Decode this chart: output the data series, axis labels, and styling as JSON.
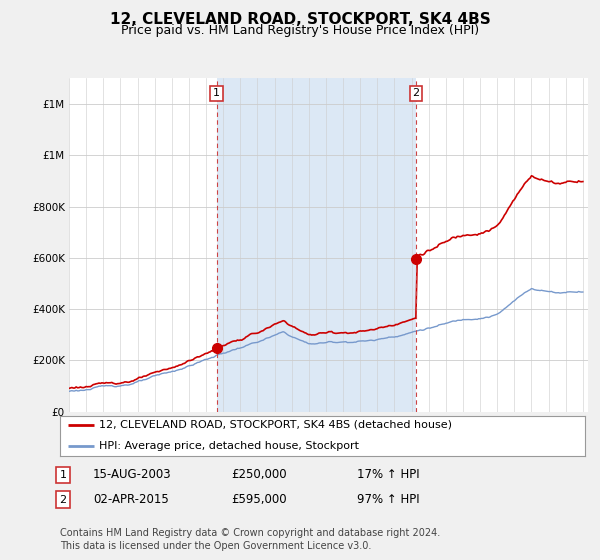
{
  "title": "12, CLEVELAND ROAD, STOCKPORT, SK4 4BS",
  "subtitle": "Price paid vs. HM Land Registry's House Price Index (HPI)",
  "ylim": [
    0,
    1300000
  ],
  "yticks": [
    0,
    200000,
    400000,
    600000,
    800000,
    1000000,
    1200000
  ],
  "fig_bg_color": "#f0f0f0",
  "plot_bg_color": "#ffffff",
  "shade_bg_color": "#dce8f5",
  "line_color_red": "#cc0000",
  "line_color_blue": "#7799cc",
  "transaction1_year": 2003.62,
  "transaction1_price": 250000,
  "transaction2_year": 2015.25,
  "transaction2_price": 595000,
  "legend_label_red": "12, CLEVELAND ROAD, STOCKPORT, SK4 4BS (detached house)",
  "legend_label_blue": "HPI: Average price, detached house, Stockport",
  "annotation1_date": "15-AUG-2003",
  "annotation1_price": "£250,000",
  "annotation1_hpi": "17% ↑ HPI",
  "annotation2_date": "02-APR-2015",
  "annotation2_price": "£595,000",
  "annotation2_hpi": "97% ↑ HPI",
  "footer": "Contains HM Land Registry data © Crown copyright and database right 2024.\nThis data is licensed under the Open Government Licence v3.0.",
  "title_fontsize": 11,
  "subtitle_fontsize": 9,
  "tick_fontsize": 7.5,
  "legend_fontsize": 8,
  "footer_fontsize": 7
}
